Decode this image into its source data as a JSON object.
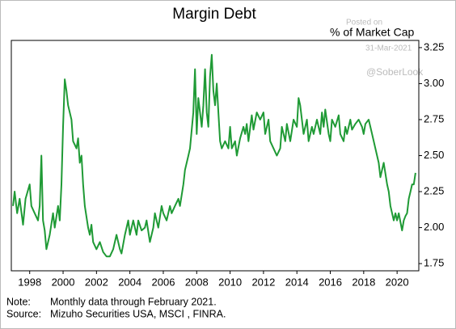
{
  "chart_data": {
    "type": "line",
    "title": "Margin Debt",
    "y_label": "% of Market Cap",
    "watermark": [
      "Posted on",
      "31-Mar-2021",
      "@SoberLook"
    ],
    "note_label": "Note:",
    "note": "Monthly data through February 2021.",
    "source_label": "Source:",
    "source": "Mizuho Securities USA, MSCI , FINRA.",
    "color": "#1f9a35",
    "xlim": [
      1996.9,
      2021.3
    ],
    "xticks": [
      1998,
      2000,
      2002,
      2004,
      2006,
      2008,
      2010,
      2012,
      2014,
      2016,
      2018,
      2020
    ],
    "ylim": [
      1.7,
      3.3
    ],
    "yticks": [
      1.75,
      {
        "value": 2,
        "label": "2.00"
      },
      2.25,
      {
        "value": 2.5,
        "label": "2.50"
      },
      2.75,
      {
        "value": 3,
        "label": "3.00"
      },
      3.25
    ],
    "x": [
      1997.0,
      1997.1,
      1997.25,
      1997.4,
      1997.6,
      1997.75,
      1998.0,
      1998.1,
      1998.3,
      1998.5,
      1998.6,
      1998.7,
      1998.8,
      1998.9,
      1999.0,
      1999.2,
      1999.4,
      1999.5,
      1999.7,
      1999.8,
      1999.9,
      2000.0,
      2000.1,
      2000.2,
      2000.3,
      2000.5,
      2000.6,
      2000.8,
      2000.9,
      2001.0,
      2001.1,
      2001.2,
      2001.3,
      2001.5,
      2001.6,
      2001.7,
      2001.8,
      2002.0,
      2002.2,
      2002.4,
      2002.6,
      2002.8,
      2003.0,
      2003.2,
      2003.4,
      2003.5,
      2003.7,
      2003.9,
      2004.0,
      2004.2,
      2004.4,
      2004.5,
      2004.7,
      2004.9,
      2005.0,
      2005.2,
      2005.4,
      2005.5,
      2005.7,
      2005.9,
      2006.0,
      2006.2,
      2006.4,
      2006.5,
      2006.7,
      2006.9,
      2007.0,
      2007.2,
      2007.3,
      2007.5,
      2007.6,
      2007.8,
      2007.9,
      2008.0,
      2008.1,
      2008.3,
      2008.4,
      2008.5,
      2008.6,
      2008.7,
      2008.8,
      2008.9,
      2009.0,
      2009.1,
      2009.2,
      2009.3,
      2009.4,
      2009.5,
      2009.7,
      2009.9,
      2010.0,
      2010.1,
      2010.3,
      2010.4,
      2010.6,
      2010.8,
      2010.9,
      2011.0,
      2011.1,
      2011.3,
      2011.4,
      2011.6,
      2011.8,
      2012.0,
      2012.1,
      2012.3,
      2012.4,
      2012.6,
      2012.8,
      2013.0,
      2013.1,
      2013.3,
      2013.4,
      2013.6,
      2013.8,
      2014.0,
      2014.1,
      2014.2,
      2014.4,
      2014.6,
      2014.7,
      2014.9,
      2015.0,
      2015.2,
      2015.4,
      2015.5,
      2015.6,
      2015.7,
      2015.9,
      2016.0,
      2016.1,
      2016.3,
      2016.5,
      2016.6,
      2016.8,
      2016.9,
      2017.0,
      2017.2,
      2017.3,
      2017.5,
      2017.7,
      2017.9,
      2018.0,
      2018.1,
      2018.3,
      2018.4,
      2018.5,
      2018.7,
      2018.9,
      2019.0,
      2019.2,
      2019.4,
      2019.5,
      2019.6,
      2019.8,
      2019.9,
      2020.0,
      2020.1,
      2020.3,
      2020.4,
      2020.5,
      2020.6,
      2020.7,
      2020.8,
      2020.9,
      2021.0,
      2021.1
    ],
    "values": [
      2.15,
      2.25,
      2.1,
      2.2,
      2.02,
      2.2,
      2.3,
      2.15,
      2.1,
      2.05,
      2.15,
      2.5,
      2.05,
      1.98,
      1.85,
      1.95,
      2.1,
      2.0,
      2.15,
      2.05,
      2.3,
      2.7,
      3.03,
      2.95,
      2.85,
      2.75,
      2.6,
      2.55,
      2.62,
      2.45,
      2.5,
      2.3,
      2.15,
      2.0,
      1.95,
      2.02,
      1.9,
      1.85,
      1.9,
      1.83,
      1.8,
      1.8,
      1.85,
      1.95,
      1.85,
      1.82,
      1.95,
      2.05,
      1.95,
      2.05,
      1.95,
      2.05,
      1.98,
      2.0,
      2.05,
      1.9,
      2.0,
      2.1,
      2.0,
      2.15,
      2.1,
      2.05,
      2.15,
      2.1,
      2.15,
      2.2,
      2.15,
      2.3,
      2.4,
      2.5,
      2.55,
      2.8,
      3.1,
      2.65,
      2.9,
      2.7,
      2.85,
      3.1,
      2.8,
      2.7,
      3.05,
      3.2,
      2.95,
      2.85,
      3.0,
      2.8,
      2.6,
      2.55,
      2.6,
      2.55,
      2.7,
      2.55,
      2.6,
      2.5,
      2.62,
      2.7,
      2.65,
      2.72,
      2.6,
      2.78,
      2.68,
      2.8,
      2.75,
      2.8,
      2.65,
      2.75,
      2.6,
      2.55,
      2.5,
      2.55,
      2.7,
      2.6,
      2.72,
      2.6,
      2.75,
      2.7,
      2.9,
      2.85,
      2.65,
      2.75,
      2.6,
      2.7,
      2.65,
      2.75,
      2.65,
      2.8,
      2.7,
      2.82,
      2.65,
      2.6,
      2.75,
      2.7,
      2.78,
      2.65,
      2.6,
      2.7,
      2.65,
      2.75,
      2.68,
      2.72,
      2.75,
      2.7,
      2.65,
      2.72,
      2.75,
      2.7,
      2.65,
      2.55,
      2.45,
      2.35,
      2.45,
      2.3,
      2.25,
      2.15,
      2.05,
      2.1,
      2.05,
      2.1,
      1.98,
      2.05,
      2.08,
      2.1,
      2.2,
      2.25,
      2.3,
      2.3,
      2.38
    ]
  }
}
